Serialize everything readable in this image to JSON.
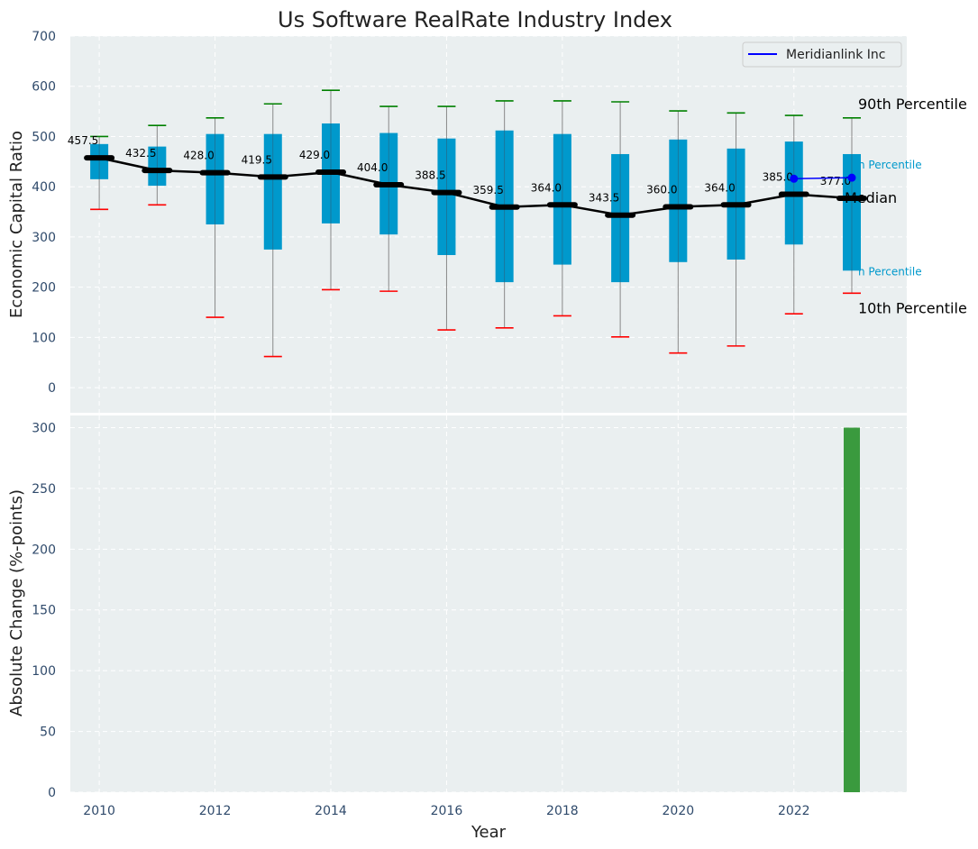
{
  "chart_data": {
    "type": "box",
    "title": "Us Software RealRate Industry Index",
    "xlabel": "Year",
    "top_panel": {
      "ylabel": "Economic Capital Ratio",
      "ylim": [
        -50,
        700
      ],
      "yticks": [
        0,
        100,
        200,
        300,
        400,
        500,
        600,
        700
      ],
      "years": [
        2010,
        2011,
        2012,
        2013,
        2014,
        2015,
        2016,
        2017,
        2018,
        2019,
        2020,
        2021,
        2022,
        2023
      ],
      "p10": [
        355,
        364,
        140,
        62,
        195,
        192,
        115,
        119,
        143,
        101,
        69,
        83,
        147,
        188
      ],
      "p25": [
        415,
        402,
        325,
        275,
        327,
        305,
        264,
        210,
        245,
        210,
        250,
        255,
        285,
        233
      ],
      "median": [
        457.5,
        432.5,
        428.0,
        419.5,
        429.0,
        404.0,
        388.5,
        359.5,
        364.0,
        343.5,
        360.0,
        364.0,
        385.0,
        377.0
      ],
      "median_labels": [
        "457.5",
        "432.5",
        "428.0",
        "419.5",
        "429.0",
        "404.0",
        "388.5",
        "359.5",
        "364.0",
        "343.5",
        "360.0",
        "364.0",
        "385.0",
        "377.0"
      ],
      "p75": [
        485,
        480,
        505,
        505,
        526,
        507,
        496,
        512,
        505,
        465,
        494,
        476,
        490,
        465
      ],
      "p90": [
        500,
        522,
        537,
        565,
        592,
        560,
        560,
        571,
        571,
        569,
        551,
        547,
        542,
        537
      ],
      "company": {
        "name": "Meridianlink Inc",
        "years": [
          2022,
          2023
        ],
        "values": [
          416,
          418
        ]
      },
      "annotations": {
        "p90": "90th Percentile",
        "p75": "h Percentile",
        "median": "Median",
        "p25": "h Percentile",
        "p10": "10th Percentile"
      },
      "legend_position": "top-right"
    },
    "bottom_panel": {
      "type": "bar",
      "ylabel": "Absolute Change (%-points)",
      "ylim": [
        0,
        310
      ],
      "yticks": [
        0,
        50,
        100,
        150,
        200,
        250,
        300
      ],
      "bars": [
        {
          "x": 2023,
          "value": 300
        }
      ]
    },
    "xticks": [
      2010,
      2012,
      2014,
      2016,
      2018,
      2020,
      2022
    ],
    "grid": true,
    "colors": {
      "background": "#eaeff0",
      "box": "#0099cc",
      "median_line": "#000000",
      "p90_cap": "#008000",
      "p10_cap": "#ff0000",
      "whisker": "#888888",
      "company": "#0000ff",
      "bar": "#3a9a3e",
      "tick_text": "#2f4a6b"
    }
  }
}
